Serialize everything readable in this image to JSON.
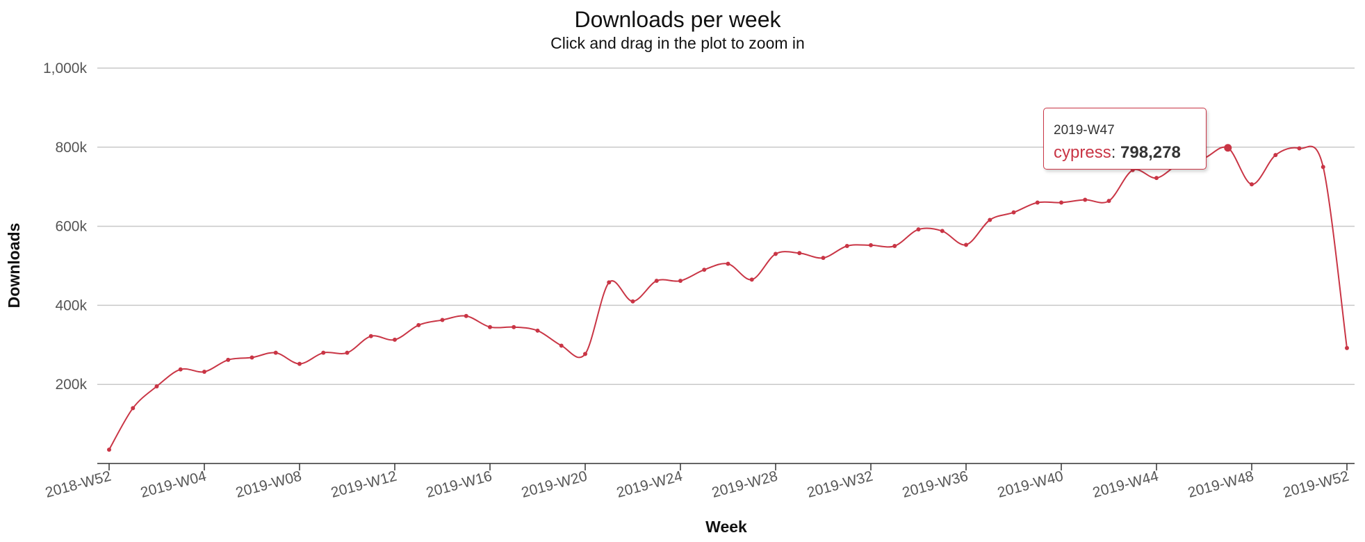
{
  "chart_data": {
    "type": "line",
    "title": "Downloads per week",
    "subtitle": "Click and drag in the plot to zoom in",
    "xlabel": "Week",
    "ylabel": "Downloads",
    "ylim": [
      0,
      1000000
    ],
    "y_ticks": [
      {
        "value": 200000,
        "label": "200k"
      },
      {
        "value": 400000,
        "label": "400k"
      },
      {
        "value": 600000,
        "label": "600k"
      },
      {
        "value": 800000,
        "label": "800k"
      },
      {
        "value": 1000000,
        "label": "1,000k"
      }
    ],
    "x_ticks": [
      "2018-W52",
      "2019-W04",
      "2019-W08",
      "2019-W12",
      "2019-W16",
      "2019-W20",
      "2019-W24",
      "2019-W28",
      "2019-W32",
      "2019-W36",
      "2019-W40",
      "2019-W44",
      "2019-W48",
      "2019-W52"
    ],
    "color": "#c93545",
    "grid": true,
    "series": [
      {
        "name": "cypress",
        "x": [
          "2018-W52",
          "2019-W01",
          "2019-W02",
          "2019-W03",
          "2019-W04",
          "2019-W05",
          "2019-W06",
          "2019-W07",
          "2019-W08",
          "2019-W09",
          "2019-W10",
          "2019-W11",
          "2019-W12",
          "2019-W13",
          "2019-W14",
          "2019-W15",
          "2019-W16",
          "2019-W17",
          "2019-W18",
          "2019-W19",
          "2019-W20",
          "2019-W21",
          "2019-W22",
          "2019-W23",
          "2019-W24",
          "2019-W25",
          "2019-W26",
          "2019-W27",
          "2019-W28",
          "2019-W29",
          "2019-W30",
          "2019-W31",
          "2019-W32",
          "2019-W33",
          "2019-W34",
          "2019-W35",
          "2019-W36",
          "2019-W37",
          "2019-W38",
          "2019-W39",
          "2019-W40",
          "2019-W41",
          "2019-W42",
          "2019-W43",
          "2019-W44",
          "2019-W45",
          "2019-W46",
          "2019-W47",
          "2019-W48",
          "2019-W49",
          "2019-W50",
          "2019-W51",
          "2019-W52"
        ],
        "values": [
          35000,
          140000,
          195000,
          238000,
          232000,
          262000,
          268000,
          280000,
          252000,
          280000,
          280000,
          322000,
          313000,
          350000,
          363000,
          373000,
          345000,
          345000,
          336000,
          298000,
          277000,
          458000,
          410000,
          462000,
          462000,
          490000,
          505000,
          465000,
          530000,
          532000,
          520000,
          550000,
          552000,
          550000,
          592000,
          588000,
          553000,
          616000,
          635000,
          660000,
          660000,
          667000,
          664000,
          742000,
          722000,
          760000,
          772000,
          798278,
          706000,
          780000,
          797000,
          750000,
          292000
        ]
      }
    ],
    "tooltip": {
      "header": "2019-W47",
      "series": "cypress",
      "separator": ":",
      "value": "798,278"
    }
  }
}
